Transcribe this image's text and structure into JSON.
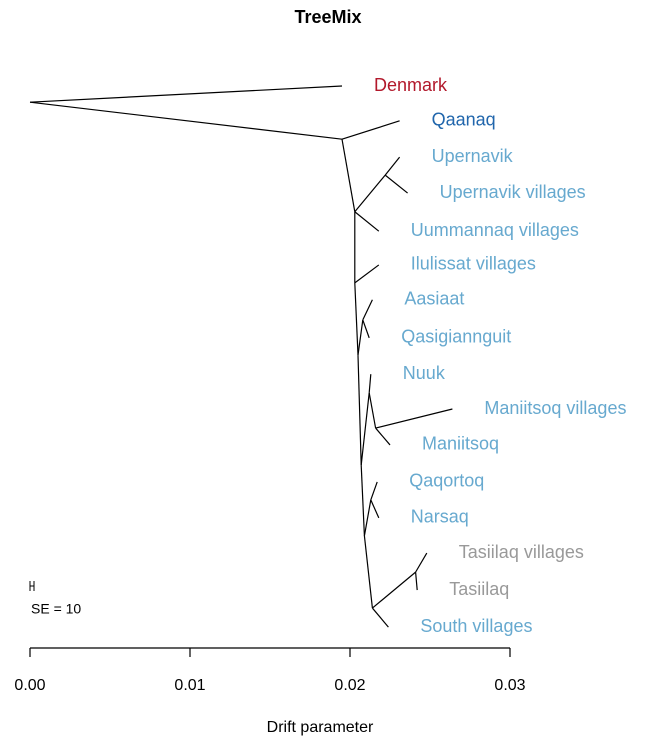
{
  "chart_data": {
    "type": "tree",
    "title": "TreeMix",
    "x_label": "Drift parameter",
    "se_label": "SE = 10",
    "xlim": [
      0,
      0.03
    ],
    "xticks": [
      {
        "value": 0,
        "label": "0.00"
      },
      0.01,
      0.02,
      0.03
    ],
    "edges": [
      {
        "x": [
          0,
          0.0195
        ],
        "y": [
          0.45,
          0
        ],
        "label": "Denmark",
        "color": "#b2182b"
      },
      {
        "x": [
          0,
          0.0195
        ],
        "y": [
          0.45,
          1.48
        ]
      },
      {
        "x": [
          0.0195,
          0.0231
        ],
        "y": [
          1.48,
          0.97
        ],
        "label": "Qaanaq",
        "color": "#2166ac"
      },
      {
        "x": [
          0.0195,
          0.0203
        ],
        "y": [
          1.48,
          3.5
        ]
      },
      {
        "x": [
          0.0203,
          0.0222
        ],
        "y": [
          3.5,
          2.48
        ]
      },
      {
        "x": [
          0.0222,
          0.0231
        ],
        "y": [
          2.48,
          1.98
        ],
        "label": "Upernavik",
        "color": "#67a9cf"
      },
      {
        "x": [
          0.0222,
          0.0236
        ],
        "y": [
          2.48,
          2.98
        ],
        "label": "Upernavik villages",
        "color": "#67a9cf"
      },
      {
        "x": [
          0.0203,
          0.0218
        ],
        "y": [
          3.5,
          4.04
        ],
        "label": "Uummannaq villages",
        "color": "#67a9cf"
      },
      {
        "x": [
          0.0203,
          0.0203
        ],
        "y": [
          3.5,
          5.48
        ]
      },
      {
        "x": [
          0.0203,
          0.0218
        ],
        "y": [
          5.48,
          4.98
        ],
        "label": "Ilulissat villages",
        "color": "#67a9cf"
      },
      {
        "x": [
          0.0203,
          0.0205
        ],
        "y": [
          5.48,
          7.49
        ]
      },
      {
        "x": [
          0.0205,
          0.0208
        ],
        "y": [
          7.49,
          6.51
        ]
      },
      {
        "x": [
          0.0208,
          0.0214
        ],
        "y": [
          6.51,
          5.95
        ],
        "label": "Aasiaat",
        "color": "#67a9cf"
      },
      {
        "x": [
          0.0208,
          0.0212
        ],
        "y": [
          6.51,
          7.01
        ],
        "label": "Qasigiannguit",
        "color": "#67a9cf"
      },
      {
        "x": [
          0.0205,
          0.0207
        ],
        "y": [
          7.49,
          10.55
        ]
      },
      {
        "x": [
          0.0207,
          0.0212
        ],
        "y": [
          10.55,
          8.54
        ]
      },
      {
        "x": [
          0.0212,
          0.0213
        ],
        "y": [
          8.54,
          8.02
        ],
        "label": "Nuuk",
        "color": "#67a9cf"
      },
      {
        "x": [
          0.0212,
          0.0216
        ],
        "y": [
          8.54,
          9.52
        ]
      },
      {
        "x": [
          0.0216,
          0.0264
        ],
        "y": [
          9.52,
          8.99
        ],
        "label": "Maniitsoq villages",
        "color": "#67a9cf"
      },
      {
        "x": [
          0.0216,
          0.0225
        ],
        "y": [
          9.52,
          9.99
        ],
        "label": "Maniitsoq",
        "color": "#67a9cf"
      },
      {
        "x": [
          0.0207,
          0.0209
        ],
        "y": [
          10.55,
          12.52
        ]
      },
      {
        "x": [
          0.0209,
          0.0213
        ],
        "y": [
          12.52,
          11.52
        ]
      },
      {
        "x": [
          0.0213,
          0.0217
        ],
        "y": [
          11.52,
          11.02
        ],
        "label": "Qaqortoq",
        "color": "#67a9cf"
      },
      {
        "x": [
          0.0213,
          0.0218
        ],
        "y": [
          11.52,
          12.02
        ],
        "label": "Narsaq",
        "color": "#67a9cf"
      },
      {
        "x": [
          0.0209,
          0.0214
        ],
        "y": [
          12.52,
          14.53
        ]
      },
      {
        "x": [
          0.0214,
          0.0241
        ],
        "y": [
          14.53,
          13.53
        ]
      },
      {
        "x": [
          0.0241,
          0.0248
        ],
        "y": [
          13.53,
          13.0
        ],
        "label": "Tasiilaq villages",
        "color": "#999999"
      },
      {
        "x": [
          0.0241,
          0.0242
        ],
        "y": [
          13.53,
          14.03
        ],
        "label": "Tasiilaq",
        "color": "#999999"
      },
      {
        "x": [
          0.0214,
          0.0224
        ],
        "y": [
          14.53,
          15.06
        ],
        "label": "South villages",
        "color": "#67a9cf"
      }
    ]
  }
}
